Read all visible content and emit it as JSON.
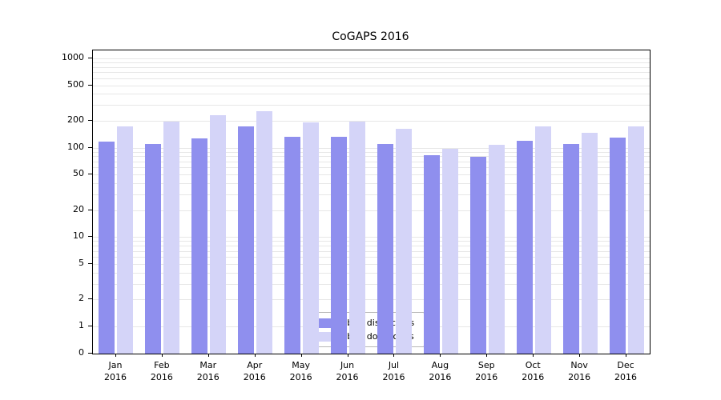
{
  "title": "CoGAPS 2016",
  "chart_data": {
    "type": "bar",
    "title": "CoGAPS 2016",
    "yscale": "log",
    "grid": "minor-horizontal",
    "legend_position": "bottom-center",
    "y_ticks": [
      0,
      1,
      2,
      5,
      10,
      20,
      50,
      100,
      200,
      500,
      1000
    ],
    "ylim": [
      0,
      1000
    ],
    "categories": [
      "Jan 2016",
      "Feb 2016",
      "Mar 2016",
      "Apr 2016",
      "May 2016",
      "Jun 2016",
      "Jul 2016",
      "Aug 2016",
      "Sep 2016",
      "Oct 2016",
      "Nov 2016",
      "Dec 2016"
    ],
    "series": [
      {
        "name": "Nb of distinct IPs",
        "color": "#8f8fee",
        "values": [
          118,
          110,
          127,
          172,
          133,
          132,
          111,
          82,
          79,
          120,
          110,
          129
        ]
      },
      {
        "name": "Nb of downloads",
        "color": "#d4d4f8",
        "values": [
          175,
          196,
          232,
          258,
          193,
          197,
          162,
          97,
          107,
          172,
          148,
          174
        ]
      }
    ]
  },
  "colors": {
    "axis": "#000000",
    "gridline": "#e7e7e7",
    "background": "#ffffff"
  }
}
